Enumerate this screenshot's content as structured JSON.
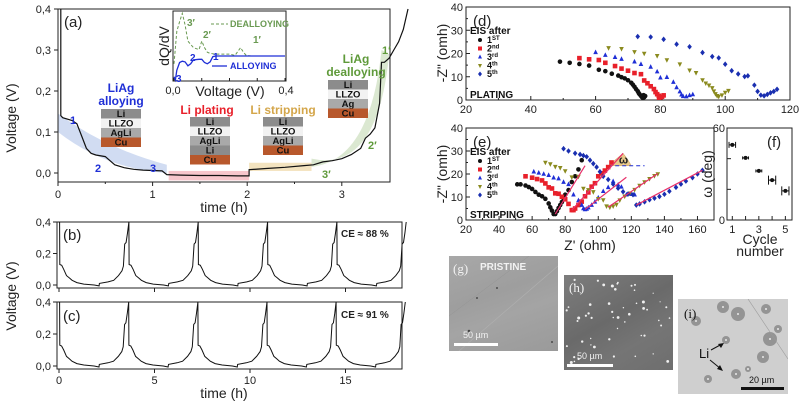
{
  "chart_data": [
    {
      "panel": "(a)",
      "type": "line",
      "xlabel": "time (h)",
      "ylabel": "Voltage (V)",
      "xlim": [
        0,
        3.7
      ],
      "ylim": [
        -0.02,
        0.4
      ],
      "xticks": [
        "0",
        "1",
        "2",
        "3"
      ],
      "yticks": [
        "0,0",
        "0,1",
        "0,2",
        "0,3",
        "0,4"
      ],
      "curve": {
        "x": [
          0.03,
          0.03,
          0.05,
          0.15,
          0.2,
          0.25,
          0.3,
          0.35,
          0.4,
          0.5,
          0.55,
          0.6,
          0.7,
          0.8,
          0.9,
          1.0,
          1.1,
          1.15,
          1.3,
          1.5,
          1.7,
          1.9,
          2.02,
          2.02,
          2.2,
          2.4,
          2.6,
          2.7,
          2.8,
          2.9,
          3.0,
          3.1,
          3.2,
          3.25,
          3.3,
          3.35,
          3.4,
          3.42,
          3.45,
          3.5,
          3.55,
          3.6,
          3.65,
          3.7
        ],
        "y": [
          0.4,
          0.14,
          0.135,
          0.128,
          0.12,
          0.09,
          0.06,
          0.048,
          0.044,
          0.04,
          0.03,
          0.02,
          0.013,
          0.009,
          0.007,
          0.006,
          0.005,
          -0.004,
          -0.005,
          -0.006,
          -0.006,
          -0.007,
          -0.007,
          0.008,
          0.011,
          0.014,
          0.018,
          0.02,
          0.027,
          0.03,
          0.035,
          0.045,
          0.06,
          0.085,
          0.095,
          0.11,
          0.17,
          0.27,
          0.27,
          0.28,
          0.3,
          0.32,
          0.35,
          0.4
        ]
      },
      "labels": {
        "panel": "(a)",
        "alloying_title": [
          "LiAg",
          "alloying"
        ],
        "plating_title": "Li plating",
        "stripping_title": "Li stripping",
        "dealloying_title": [
          "LiAg",
          "dealloying"
        ],
        "markers_alloying": [
          "1",
          "2",
          "3"
        ],
        "markers_dealloying": [
          "1′",
          "2′",
          "3′"
        ]
      },
      "stacks": {
        "alloying": [
          "Li",
          "LLZO",
          "AgLi",
          "Cu"
        ],
        "plating": [
          "Li",
          "LLZO",
          "AgLi",
          "Li",
          "Cu"
        ],
        "stripping": [
          "Li",
          "LLZO",
          "AgLi",
          "Cu"
        ],
        "dealloying": [
          "Li",
          "LLZO",
          "Ag",
          "Cu"
        ]
      },
      "colors": {
        "alloying": "#1f2fd6",
        "plating": "#e8202a",
        "stripping": "#d4a64a",
        "dealloying": "#5f9a3a",
        "alloying_band": "#c9d6f0",
        "plating_band": "#f7c6cc",
        "stripping_band": "#f3e3bf",
        "dealloying_band": "#d5e4c9",
        "li_layer": "#8c8c8c",
        "llzo_layer": "#f2f2f2",
        "agli_layer": "#a9a9a9",
        "cu_layer": "#b8582c"
      },
      "inset": {
        "type": "line",
        "ylabel": "dQ/dV",
        "xlabel": "Voltage (V)",
        "xticks": [
          "0,0",
          "0,4"
        ],
        "xlim": [
          0,
          0.4
        ],
        "series": [
          {
            "name": "DEALLOYING",
            "style": "dashed",
            "color": "#6a9a52",
            "x": [
              0,
              0.01,
              0.02,
              0.03,
              0.04,
              0.05,
              0.07,
              0.09,
              0.1,
              0.11,
              0.12,
              0.13,
              0.15,
              0.2,
              0.22,
              0.24,
              0.25,
              0.26,
              0.28,
              0.3,
              0.4
            ],
            "y": [
              0.2,
              0.7,
              0.85,
              0.98,
              0.8,
              0.55,
              0.45,
              0.42,
              0.55,
              0.45,
              0.38,
              0.36,
              0.35,
              0.35,
              0.33,
              0.45,
              0.38,
              0.33,
              0.32,
              0.32,
              0.32
            ]
          },
          {
            "name": "ALLOYING",
            "style": "solid",
            "color": "#1f2fd6",
            "x": [
              0,
              0.005,
              0.01,
              0.02,
              0.03,
              0.04,
              0.05,
              0.06,
              0.07,
              0.09,
              0.1,
              0.11,
              0.12,
              0.13,
              0.14,
              0.15,
              0.4
            ],
            "y": [
              0.0,
              -0.05,
              0.1,
              0.22,
              0.24,
              0.23,
              0.17,
              0.2,
              0.26,
              0.27,
              0.27,
              0.22,
              0.2,
              0.23,
              0.31,
              0.32,
              0.32
            ]
          }
        ],
        "peak_labels": {
          "dealloying": [
            "3′",
            "2′",
            "1′"
          ],
          "alloying": [
            "3",
            "2",
            "1"
          ]
        }
      }
    },
    {
      "panel": "(b)",
      "type": "line",
      "xlabel": "",
      "ylabel": "Voltage (V)",
      "xlim": [
        0,
        17.8
      ],
      "ylim": [
        0,
        0.4
      ],
      "yticks": [
        "0,0",
        "0,2",
        "0,4"
      ],
      "annotation": "CE ≈ 88 %",
      "cycles": 5,
      "period_h": 3.63
    },
    {
      "panel": "(c)",
      "type": "line",
      "xlabel": "time (h)",
      "ylabel": "Voltage (V)",
      "xlim": [
        -0.1,
        17.9
      ],
      "ylim": [
        0,
        0.4
      ],
      "xticks": [
        "0",
        "5",
        "10",
        "15"
      ],
      "yticks": [
        "0,0",
        "0,2",
        "0,4"
      ],
      "annotation": "CE ≈ 91 %",
      "cycles": 5,
      "period_h": 3.62
    },
    {
      "panel": "(d)",
      "type": "scatter",
      "xlabel": "",
      "ylabel": "-Z\" (omh)",
      "xlim": [
        20,
        120
      ],
      "ylim": [
        0,
        40
      ],
      "xticks": [
        "20",
        "40",
        "60",
        "80",
        "100",
        "120"
      ],
      "yticks": [
        "0",
        "10",
        "20",
        "30",
        "40"
      ],
      "legend_title": "EIS after",
      "footer": "PLATING",
      "legend": "top-left",
      "series": [
        {
          "name": "1ST",
          "sup": "ST",
          "base": "1",
          "color": "#111111",
          "marker": "circle",
          "x": [
            49,
            52,
            55,
            58,
            61,
            63,
            65,
            67,
            68,
            69,
            70,
            71,
            71.5,
            72,
            72.5,
            73,
            73.3,
            73.6,
            74,
            74.3,
            74.6,
            75,
            75.3,
            74.8,
            74.3
          ],
          "y": [
            16.5,
            16,
            15.5,
            14.8,
            13,
            12.4,
            11.3,
            10.5,
            9.8,
            9.3,
            8.5,
            7.4,
            6.6,
            5.7,
            4.7,
            3.8,
            3,
            2.4,
            1.8,
            1.3,
            0.9,
            1.2,
            1.7,
            2.1,
            1.5
          ]
        },
        {
          "name": "2nd",
          "sup": "nd",
          "base": "2",
          "color": "#e8202a",
          "marker": "square",
          "x": [
            55,
            58,
            61,
            63,
            66,
            68,
            70,
            72,
            74,
            75,
            76,
            77,
            78,
            78.5,
            79,
            79.5,
            80,
            80.5,
            81,
            79.6
          ],
          "y": [
            18,
            17.5,
            17.2,
            16,
            14.6,
            13.5,
            12.6,
            11.6,
            11.1,
            8.4,
            7.2,
            5.9,
            4.7,
            3.4,
            2.5,
            1.8,
            1.2,
            1.4,
            2,
            1
          ]
        },
        {
          "name": "3rd",
          "sup": "rd",
          "base": "3",
          "color": "#1f2fd6",
          "marker": "triangle-up",
          "x": [
            60,
            63,
            66,
            68,
            72,
            74,
            77,
            79,
            80,
            82,
            84,
            85,
            86,
            86.5,
            87,
            88,
            89,
            90
          ],
          "y": [
            20.5,
            19.3,
            18.4,
            17.6,
            16.5,
            15.4,
            14.2,
            12.2,
            9.6,
            9.8,
            7.7,
            5.4,
            3.6,
            2.3,
            1.6,
            1.5,
            2,
            2.4
          ]
        },
        {
          "name": "4th",
          "sup": "th",
          "base": "4",
          "color": "#8a8a1e",
          "marker": "triangle-down",
          "x": [
            64,
            68,
            72,
            75,
            79,
            82,
            86,
            89,
            91,
            93,
            94,
            95,
            96,
            96.5,
            97,
            97.5,
            98,
            99,
            100,
            101
          ],
          "y": [
            22.4,
            22,
            20.7,
            20,
            19,
            17.2,
            15.4,
            12.8,
            11.7,
            8.6,
            7.2,
            6.3,
            5.2,
            3.8,
            2.6,
            1.8,
            1.5,
            2.1,
            3.2,
            4
          ]
        },
        {
          "name": "5th",
          "sup": "th",
          "base": "5",
          "color": "#1a2fb0",
          "marker": "diamond",
          "x": [
            73,
            77,
            81,
            85,
            89,
            93,
            96,
            98,
            100,
            102,
            104,
            106,
            107,
            109,
            110,
            111,
            112,
            113,
            114,
            115,
            116
          ],
          "y": [
            27.3,
            27.1,
            26.1,
            24,
            22.9,
            20.4,
            18.7,
            18.1,
            15.4,
            12.6,
            11.2,
            10.1,
            10.4,
            6.4,
            3.7,
            2.1,
            1.8,
            2.4,
            3.1,
            3.7,
            4.6
          ]
        }
      ]
    },
    {
      "panel": "(e)",
      "type": "scatter",
      "xlabel": "Z' (ohm)",
      "ylabel": "-Z\" (omh)",
      "xlim": [
        20,
        170
      ],
      "ylim": [
        0,
        40
      ],
      "xticks": [
        "20",
        "40",
        "60",
        "80",
        "100",
        "120",
        "140",
        "160"
      ],
      "yticks": [
        "0",
        "10",
        "20",
        "30",
        "40"
      ],
      "legend_title": "EIS after",
      "footer": "STRIPPING",
      "legend": "top-left",
      "angle_label": "ω",
      "series": [
        {
          "name": "1ST",
          "sup": "ST",
          "base": "1",
          "color": "#111111",
          "marker": "circle",
          "x": [
            51,
            53,
            56,
            58,
            60,
            62,
            64,
            66,
            68,
            70,
            71,
            72,
            73,
            74,
            75,
            76,
            77,
            78,
            79,
            80,
            82,
            84,
            86,
            88,
            90
          ],
          "y": [
            15.5,
            15.5,
            15,
            14.3,
            13.5,
            12.2,
            11,
            10.3,
            9.2,
            7.2,
            5.5,
            4.1,
            2.6,
            2.6,
            3.8,
            5.2,
            6.5,
            7.8,
            9.4,
            11,
            13,
            16.5,
            19,
            22,
            26
          ]
        },
        {
          "name": "2nd",
          "sup": "nd",
          "base": "2",
          "color": "#e8202a",
          "marker": "square",
          "x": [
            56,
            60,
            63,
            66,
            68,
            70,
            72,
            74,
            76,
            78,
            80,
            82,
            84,
            85,
            86,
            88,
            90,
            92,
            94,
            96,
            98,
            100,
            102,
            104,
            106,
            108
          ],
          "y": [
            19,
            18.4,
            17.8,
            17.2,
            15.9,
            14.2,
            13.7,
            11.6,
            11.4,
            10.1,
            9,
            7,
            4.3,
            4.3,
            5,
            6.5,
            8,
            10.3,
            12,
            14.5,
            16,
            19,
            20.3,
            21.5,
            23,
            25
          ]
        },
        {
          "name": "3rd",
          "sup": "rd",
          "base": "3",
          "color": "#1f2fd6",
          "marker": "triangle-up",
          "x": [
            61,
            64,
            67,
            70,
            73,
            76,
            79,
            82,
            85,
            88,
            90,
            91,
            92,
            93,
            94,
            96,
            98,
            100,
            103,
            106,
            109,
            112,
            114,
            117,
            120,
            122
          ],
          "y": [
            21,
            20.5,
            20,
            19.5,
            18.4,
            18,
            16.5,
            15.5,
            11,
            8.5,
            6.5,
            5,
            4.6,
            4.8,
            5.4,
            6.5,
            7.9,
            9.7,
            12.5,
            14.2,
            16.8,
            15.3,
            14.4,
            11,
            11.2,
            11
          ]
        },
        {
          "name": "4th",
          "sup": "th",
          "base": "4",
          "color": "#8a8a1e",
          "marker": "triangle-down",
          "x": [
            68,
            71,
            74,
            77,
            80,
            84,
            88,
            91,
            94,
            97,
            100,
            103,
            105,
            107,
            109,
            111,
            113,
            116,
            119,
            122,
            125,
            128,
            131,
            134,
            136
          ],
          "y": [
            25,
            24.3,
            23.2,
            22.7,
            21.3,
            18.6,
            18.9,
            13.7,
            13.1,
            12.2,
            9.2,
            8.7,
            6,
            5.5,
            6,
            6.7,
            8.6,
            10.3,
            11.6,
            13.2,
            15,
            16.5,
            17.9,
            19.2,
            20
          ]
        },
        {
          "name": "5th",
          "sup": "th",
          "base": "5",
          "color": "#1a2fb0",
          "marker": "diamond",
          "x": [
            79,
            82,
            86,
            89,
            91,
            93,
            95,
            97,
            99,
            101,
            103,
            106,
            109,
            112,
            115,
            118,
            121,
            123,
            125,
            128,
            131,
            134,
            137,
            140,
            143,
            147,
            150,
            153,
            157,
            160,
            163
          ],
          "y": [
            31,
            30,
            29,
            28.5,
            28,
            27.5,
            26,
            24.5,
            23,
            21,
            19,
            17.6,
            15.6,
            13.8,
            12.3,
            11.3,
            11,
            6.5,
            7,
            7.9,
            8.8,
            9.5,
            10.2,
            11.2,
            12.5,
            14.2,
            15.6,
            16.9,
            18.4,
            20,
            21.6
          ]
        }
      ],
      "fit_lines": [
        {
          "x": [
            74,
            92
          ],
          "y": [
            2.6,
            23.6
          ]
        },
        {
          "x": [
            84,
            115
          ],
          "y": [
            4.3,
            29
          ]
        },
        {
          "x": [
            92,
            117
          ],
          "y": [
            4.6,
            18.6
          ]
        },
        {
          "x": [
            106,
            136
          ],
          "y": [
            5.6,
            20.2
          ]
        },
        {
          "x": [
            123,
            163
          ],
          "y": [
            6.5,
            21.6
          ]
        }
      ],
      "baseline_dashed": {
        "x": [
          106,
          128
        ],
        "y": 23.6
      }
    },
    {
      "panel": "(f)",
      "type": "scatter",
      "xlabel": "Cycle number",
      "xlabel_lines": [
        "Cycle",
        "number"
      ],
      "ylabel": "ω (deg)",
      "xlim": [
        0.6,
        5.5
      ],
      "ylim": [
        0,
        60
      ],
      "xticks": [
        "1",
        "3",
        "5"
      ],
      "yticks": [
        "0",
        "60"
      ],
      "categories": [
        1,
        2,
        3,
        4,
        5
      ],
      "values": [
        49,
        40.5,
        32,
        26,
        19
      ],
      "errors_x": [
        0.35,
        0.3,
        0.3,
        0.4,
        0.4
      ],
      "errors_y": [
        2,
        0.5,
        0.5,
        3,
        3
      ]
    }
  ],
  "images": {
    "g": {
      "panel": "(g)",
      "label": "PRISTINE",
      "scalebar": "50 µm"
    },
    "h": {
      "panel": "(h)",
      "scalebar": "50 µm"
    },
    "i": {
      "panel": "(i)",
      "scalebar": "20 µm",
      "annotation": "Li"
    }
  }
}
